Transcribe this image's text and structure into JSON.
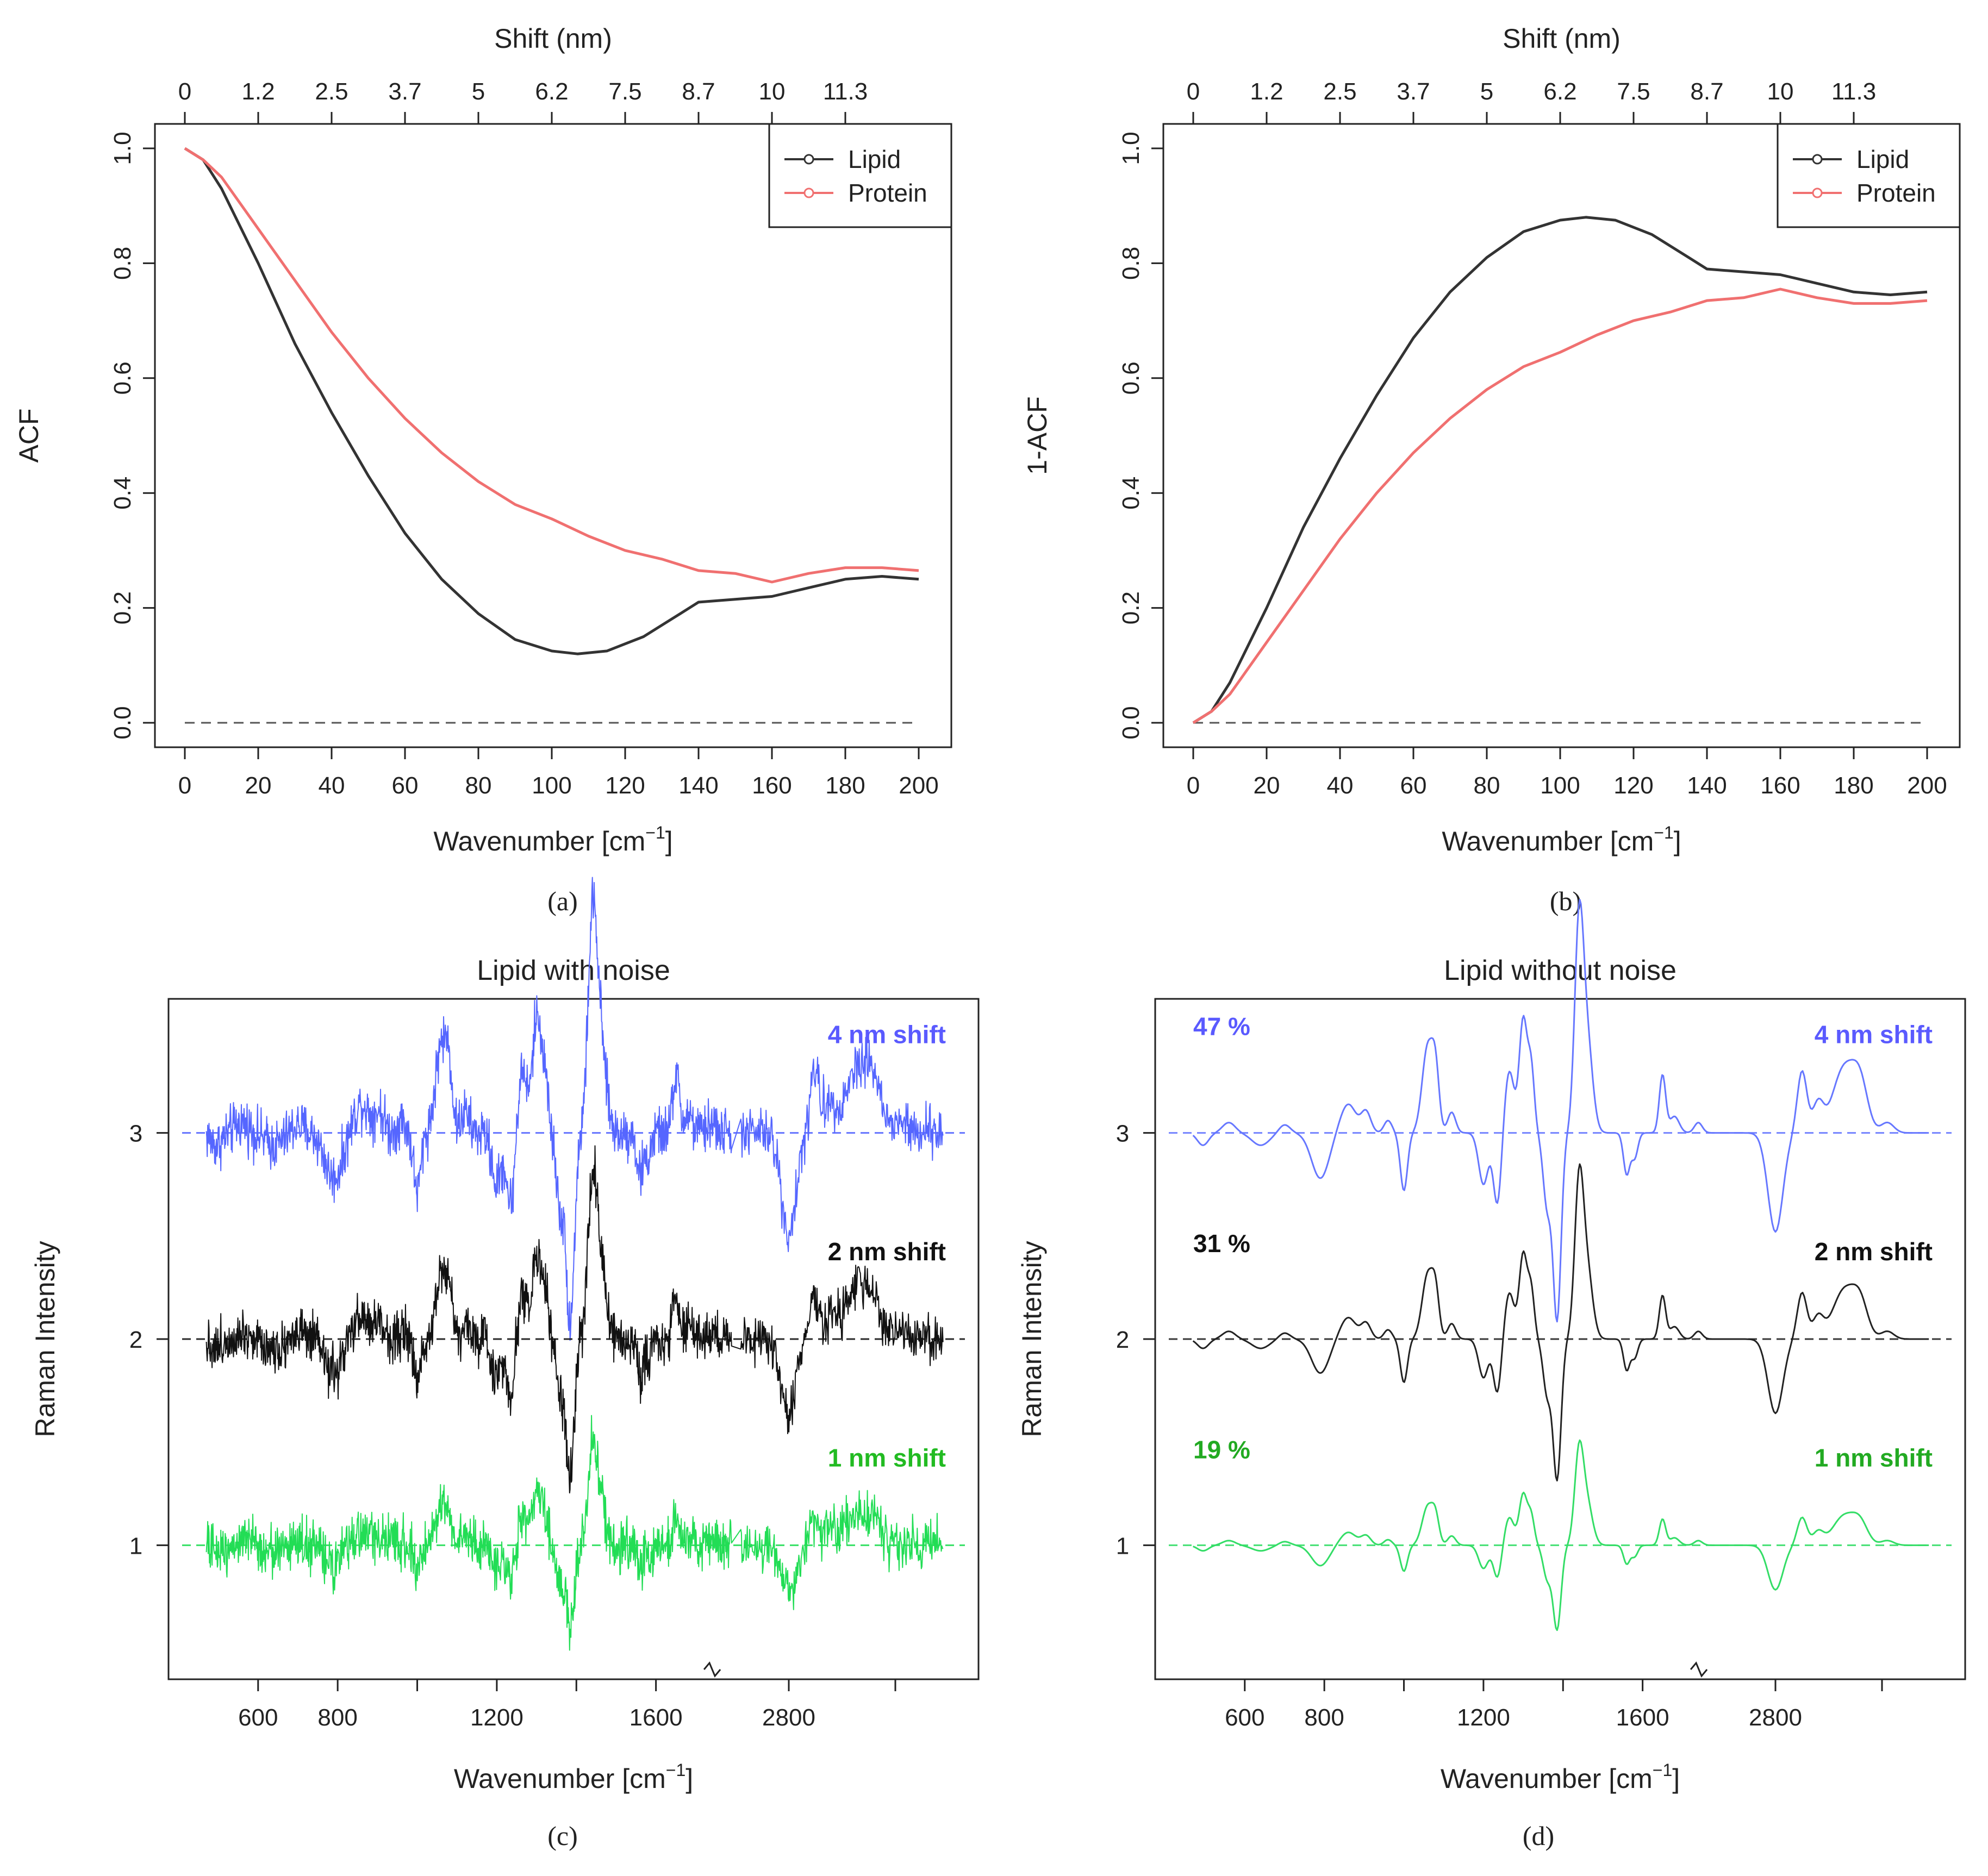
{
  "chart_data": [
    {
      "panel": "a",
      "type": "line",
      "caption": "(a)",
      "xlabel": "Wavenumber [cm",
      "xlabel_sup": "−1",
      "xlabel_end": "]",
      "ylabel": "ACF",
      "top_axis_label": "Shift (nm)",
      "top_ticks": [
        {
          "at": 0,
          "label": "0"
        },
        {
          "at": 20,
          "label": "1.2"
        },
        {
          "at": 40,
          "label": "2.5"
        },
        {
          "at": 60,
          "label": "3.7"
        },
        {
          "at": 80,
          "label": "5"
        },
        {
          "at": 100,
          "label": "6.2"
        },
        {
          "at": 120,
          "label": "7.5"
        },
        {
          "at": 140,
          "label": "8.7"
        },
        {
          "at": 160,
          "label": "10"
        },
        {
          "at": 180,
          "label": "11.3"
        }
      ],
      "xlim": [
        0,
        200
      ],
      "ylim": [
        0,
        1
      ],
      "xticks": [
        0,
        20,
        40,
        60,
        80,
        100,
        120,
        140,
        160,
        180,
        200
      ],
      "yticks": [
        "0.0",
        "0.2",
        "0.4",
        "0.6",
        "0.8",
        "1.0"
      ],
      "hline": 0,
      "legend": [
        "Lipid",
        "Protein"
      ],
      "legend_position": "top-right",
      "series": [
        {
          "name": "Lipid",
          "color": "#333333",
          "x": [
            0,
            5,
            10,
            20,
            30,
            40,
            50,
            60,
            70,
            80,
            90,
            100,
            107,
            115,
            125,
            135,
            140,
            150,
            160,
            170,
            180,
            190,
            200
          ],
          "y": [
            1.0,
            0.98,
            0.93,
            0.8,
            0.66,
            0.54,
            0.43,
            0.33,
            0.25,
            0.19,
            0.145,
            0.125,
            0.12,
            0.125,
            0.15,
            0.19,
            0.21,
            0.215,
            0.22,
            0.235,
            0.25,
            0.255,
            0.25
          ]
        },
        {
          "name": "Protein",
          "color": "#f07070",
          "x": [
            0,
            5,
            10,
            20,
            30,
            40,
            50,
            60,
            70,
            80,
            90,
            100,
            110,
            120,
            130,
            140,
            150,
            160,
            170,
            180,
            190,
            200
          ],
          "y": [
            1.0,
            0.98,
            0.95,
            0.86,
            0.77,
            0.68,
            0.6,
            0.53,
            0.47,
            0.42,
            0.38,
            0.355,
            0.325,
            0.3,
            0.285,
            0.265,
            0.26,
            0.245,
            0.26,
            0.27,
            0.27,
            0.265
          ]
        }
      ]
    },
    {
      "panel": "b",
      "type": "line",
      "caption": "(b)",
      "xlabel": "Wavenumber [cm",
      "xlabel_sup": "−1",
      "xlabel_end": "]",
      "ylabel": "1-ACF",
      "top_axis_label": "Shift (nm)",
      "top_ticks": [
        {
          "at": 0,
          "label": "0"
        },
        {
          "at": 20,
          "label": "1.2"
        },
        {
          "at": 40,
          "label": "2.5"
        },
        {
          "at": 60,
          "label": "3.7"
        },
        {
          "at": 80,
          "label": "5"
        },
        {
          "at": 100,
          "label": "6.2"
        },
        {
          "at": 120,
          "label": "7.5"
        },
        {
          "at": 140,
          "label": "8.7"
        },
        {
          "at": 160,
          "label": "10"
        },
        {
          "at": 180,
          "label": "11.3"
        }
      ],
      "xlim": [
        0,
        200
      ],
      "ylim": [
        0,
        1
      ],
      "xticks": [
        0,
        20,
        40,
        60,
        80,
        100,
        120,
        140,
        160,
        180,
        200
      ],
      "yticks": [
        "0.0",
        "0.2",
        "0.4",
        "0.6",
        "0.8",
        "1.0"
      ],
      "hline": 0,
      "legend": [
        "Lipid",
        "Protein"
      ],
      "legend_position": "top-right",
      "series": [
        {
          "name": "Lipid",
          "color": "#333333",
          "x": [
            0,
            5,
            10,
            20,
            30,
            40,
            50,
            60,
            70,
            80,
            90,
            100,
            107,
            115,
            125,
            135,
            140,
            150,
            160,
            170,
            180,
            190,
            200
          ],
          "y": [
            0.0,
            0.02,
            0.07,
            0.2,
            0.34,
            0.46,
            0.57,
            0.67,
            0.75,
            0.81,
            0.855,
            0.875,
            0.88,
            0.875,
            0.85,
            0.81,
            0.79,
            0.785,
            0.78,
            0.765,
            0.75,
            0.745,
            0.75
          ]
        },
        {
          "name": "Protein",
          "color": "#f07070",
          "x": [
            0,
            5,
            10,
            20,
            30,
            40,
            50,
            60,
            70,
            80,
            90,
            100,
            110,
            120,
            130,
            140,
            150,
            160,
            170,
            180,
            190,
            200
          ],
          "y": [
            0.0,
            0.02,
            0.05,
            0.14,
            0.23,
            0.32,
            0.4,
            0.47,
            0.53,
            0.58,
            0.62,
            0.645,
            0.675,
            0.7,
            0.715,
            0.735,
            0.74,
            0.755,
            0.74,
            0.73,
            0.73,
            0.735
          ]
        }
      ]
    },
    {
      "panel": "c",
      "type": "line",
      "caption": "(c)",
      "title": "Lipid with noise",
      "xlabel": "Wavenumber [cm",
      "xlabel_sup": "−1",
      "xlabel_end": "]",
      "ylabel": "Raman Intensity",
      "xticks": [
        {
          "at": 600,
          "label": "600"
        },
        {
          "at": 800,
          "label": "800"
        },
        {
          "at": 1200,
          "label": "1200"
        },
        {
          "at": 1600,
          "label": "1600"
        },
        {
          "at": 2800,
          "label": "2800"
        }
      ],
      "x_break": "axis break between 1800 and 2700",
      "yticks": [
        "1",
        "2",
        "3"
      ],
      "ylim": [
        0.35,
        3.65
      ],
      "noisy": true,
      "series": [
        {
          "name": "4 nm shift",
          "baseline": 3,
          "scale": 1.0,
          "color": "#5566ff",
          "label_color": "#5a5aff"
        },
        {
          "name": "2 nm shift",
          "baseline": 2,
          "scale": 0.75,
          "color": "#111111",
          "label_color": "#111111"
        },
        {
          "name": "1 nm shift",
          "baseline": 1,
          "scale": 0.45,
          "color": "#22dd55",
          "label_color": "#22bb22"
        }
      ]
    },
    {
      "panel": "d",
      "type": "line",
      "caption": "(d)",
      "title": "Lipid without noise",
      "xlabel": "Wavenumber [cm",
      "xlabel_sup": "−1",
      "xlabel_end": "]",
      "ylabel": "Raman Intensity",
      "xticks": [
        {
          "at": 600,
          "label": "600"
        },
        {
          "at": 800,
          "label": "800"
        },
        {
          "at": 1200,
          "label": "1200"
        },
        {
          "at": 1600,
          "label": "1600"
        },
        {
          "at": 2800,
          "label": "2800"
        }
      ],
      "x_break": "axis break between 1800 and 2700",
      "yticks": [
        "1",
        "2",
        "3"
      ],
      "ylim": [
        0.35,
        3.65
      ],
      "noisy": false,
      "series": [
        {
          "name": "4 nm shift",
          "percent": "47 %",
          "baseline": 3,
          "scale": 1.0,
          "color": "#6677ff",
          "label_color": "#5a5aff"
        },
        {
          "name": "2 nm shift",
          "percent": "31 %",
          "baseline": 2,
          "scale": 0.75,
          "color": "#222222",
          "label_color": "#111111"
        },
        {
          "name": "1 nm shift",
          "percent": "19 %",
          "baseline": 1,
          "scale": 0.45,
          "color": "#33dd66",
          "label_color": "#22aa22"
        }
      ]
    }
  ]
}
